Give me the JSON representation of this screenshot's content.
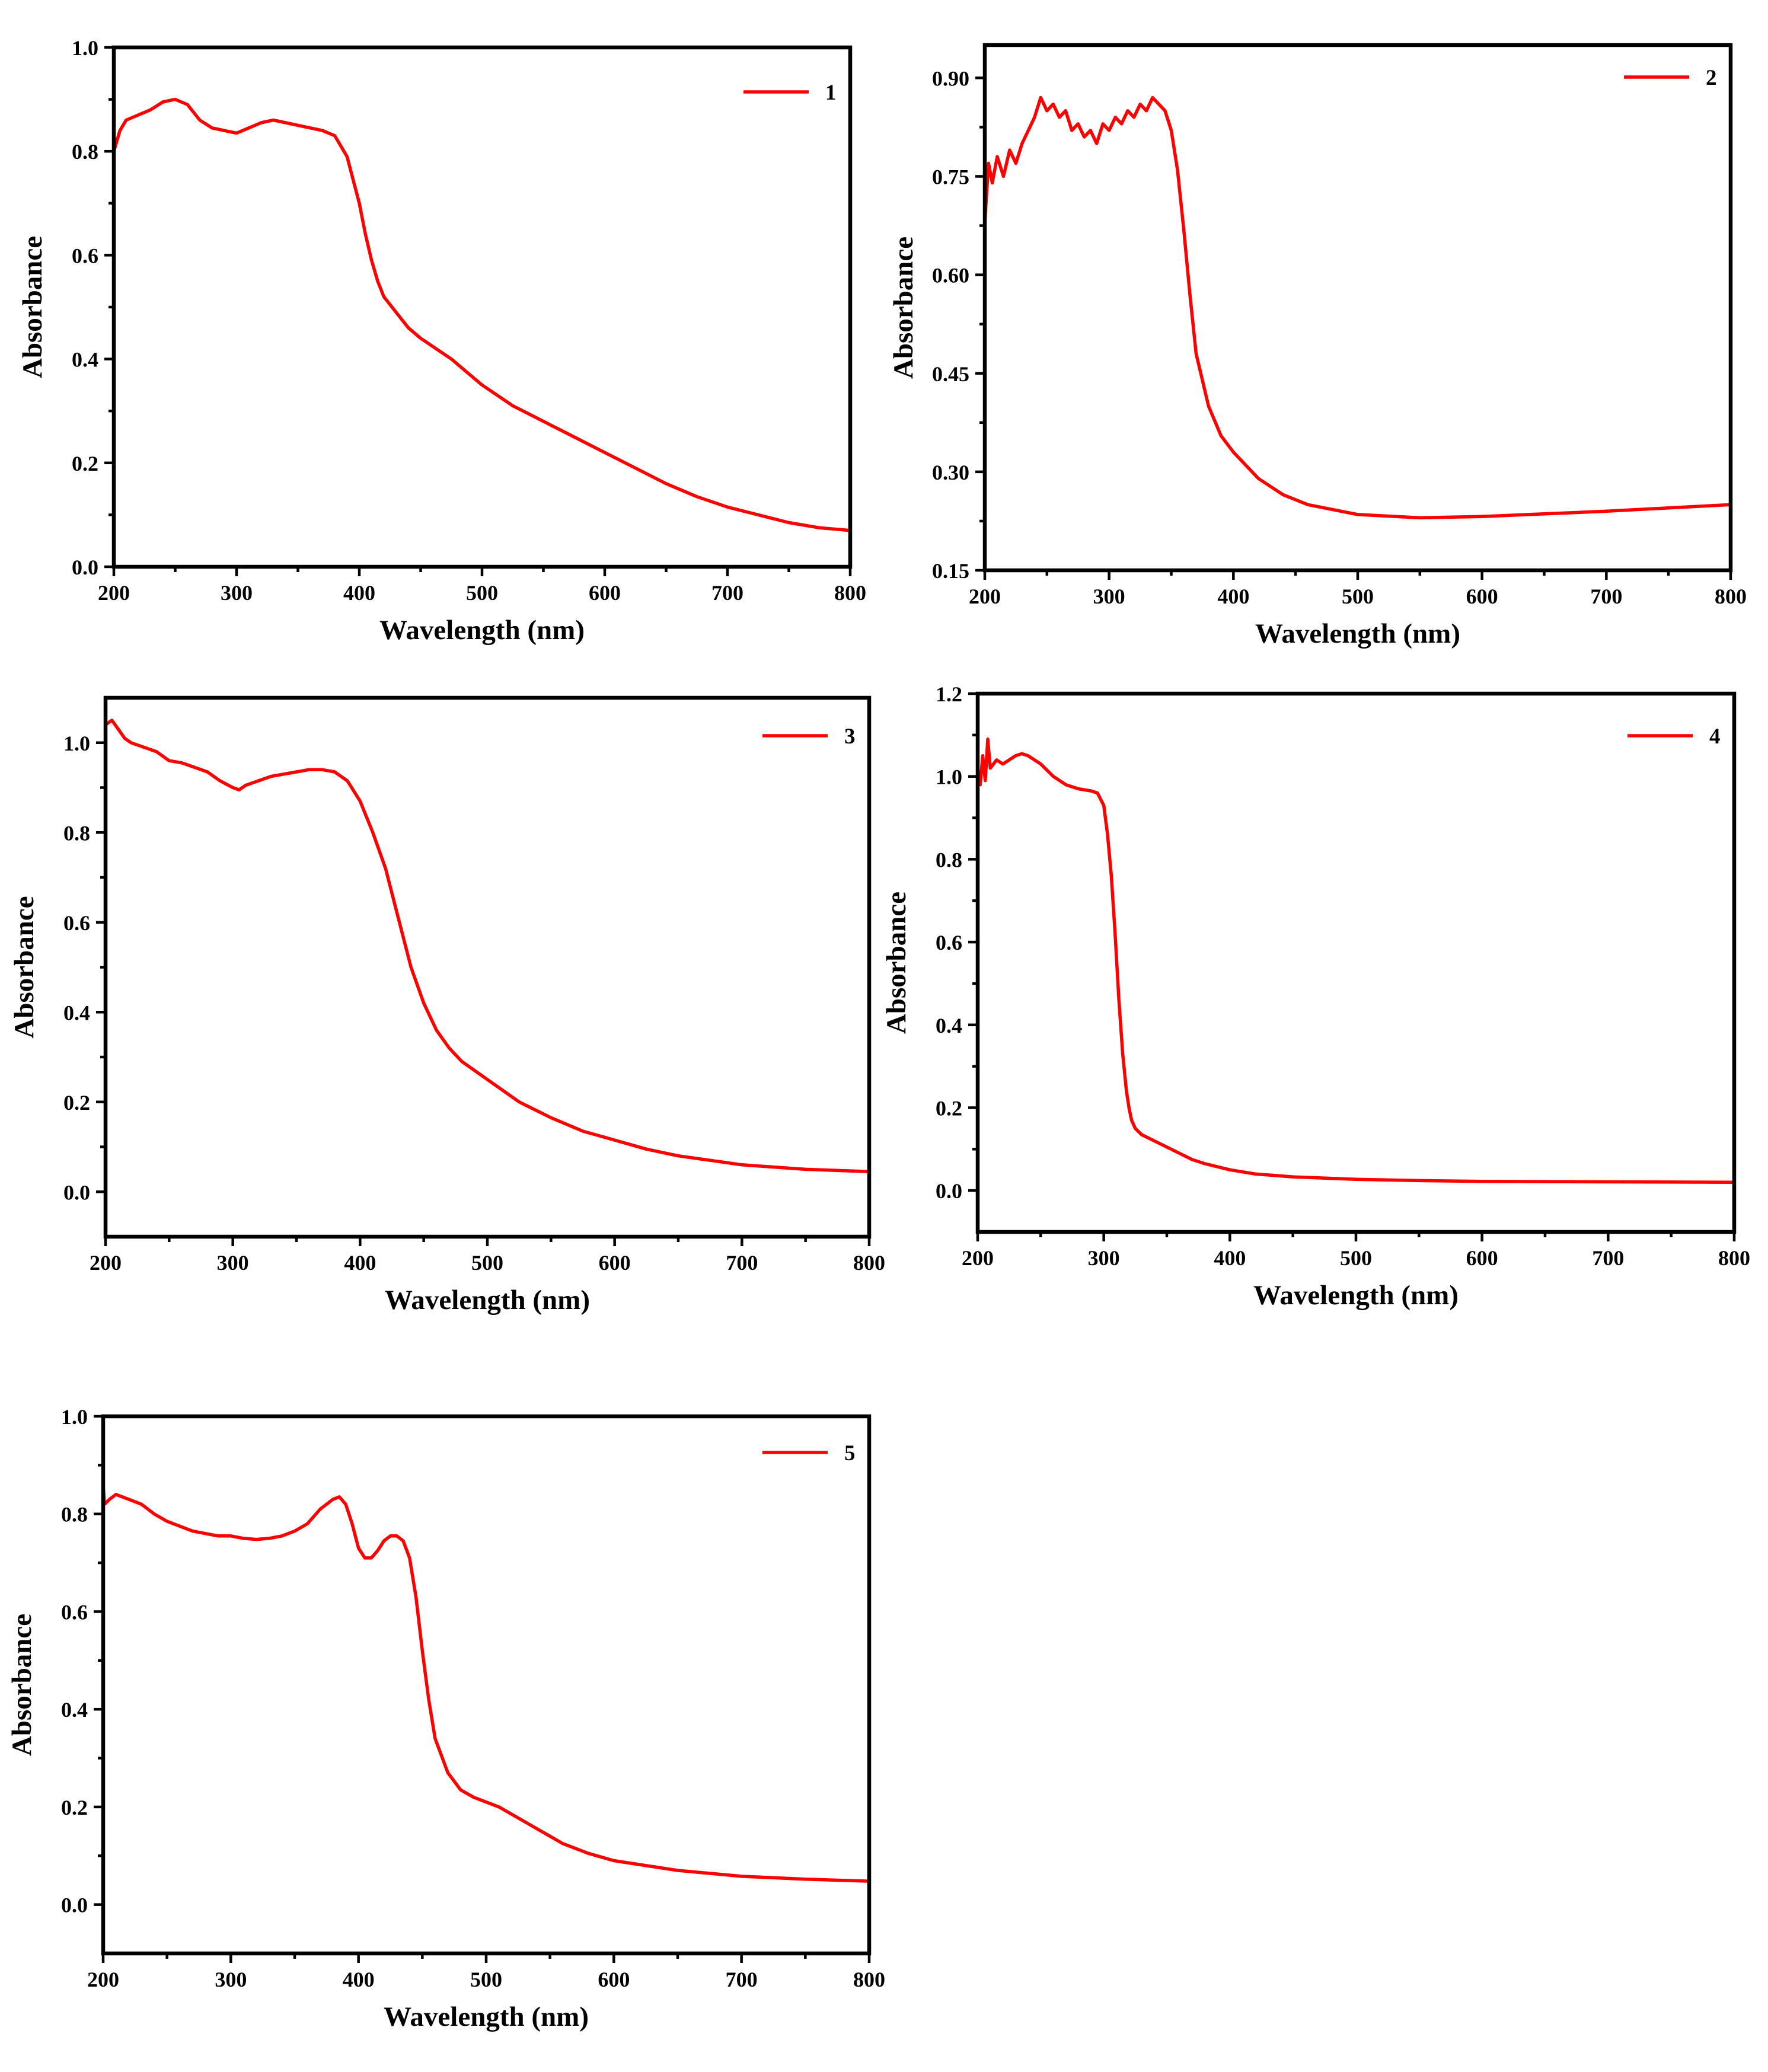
{
  "chart_data": [
    {
      "type": "line",
      "xlabel": "Wavelength (nm)",
      "ylabel": "Absorbance",
      "xlim": [
        200,
        800
      ],
      "ylim": [
        0.0,
        1.0
      ],
      "xticks": [
        200,
        300,
        400,
        500,
        600,
        700,
        800
      ],
      "xtick_labels": [
        "200",
        "300",
        "400",
        "500",
        "600",
        "700",
        "800"
      ],
      "yticks": [
        0.0,
        0.2,
        0.4,
        0.6,
        0.8,
        1.0
      ],
      "ytick_labels": [
        "0.0",
        "0.2",
        "0.4",
        "0.6",
        "0.8",
        "1.0"
      ],
      "legend_position": "top-right",
      "series": [
        {
          "name": "1",
          "color": "#ff0000",
          "x": [
            200,
            205,
            210,
            220,
            230,
            240,
            250,
            260,
            270,
            280,
            290,
            300,
            310,
            320,
            330,
            340,
            350,
            360,
            370,
            380,
            390,
            400,
            405,
            410,
            415,
            420,
            430,
            440,
            450,
            475,
            500,
            525,
            550,
            575,
            600,
            625,
            650,
            675,
            700,
            725,
            750,
            775,
            800
          ],
          "y": [
            0.8,
            0.84,
            0.86,
            0.87,
            0.88,
            0.895,
            0.9,
            0.89,
            0.86,
            0.845,
            0.84,
            0.835,
            0.845,
            0.855,
            0.86,
            0.855,
            0.85,
            0.845,
            0.84,
            0.83,
            0.79,
            0.7,
            0.64,
            0.59,
            0.55,
            0.52,
            0.49,
            0.46,
            0.44,
            0.4,
            0.35,
            0.31,
            0.28,
            0.25,
            0.22,
            0.19,
            0.16,
            0.135,
            0.115,
            0.1,
            0.085,
            0.075,
            0.07
          ]
        }
      ]
    },
    {
      "type": "line",
      "xlabel": "Wavelength (nm)",
      "ylabel": "Absorbance",
      "xlim": [
        200,
        800
      ],
      "ylim": [
        0.15,
        0.95
      ],
      "xticks": [
        200,
        300,
        400,
        500,
        600,
        700,
        800
      ],
      "xtick_labels": [
        "200",
        "300",
        "400",
        "500",
        "600",
        "700",
        "800"
      ],
      "yticks": [
        0.15,
        0.3,
        0.45,
        0.6,
        0.75,
        0.9
      ],
      "ytick_labels": [
        "0.15",
        "0.30",
        "0.45",
        "0.60",
        "0.75",
        "0.90"
      ],
      "legend_position": "top-right",
      "series": [
        {
          "name": "2",
          "color": "#ff0000",
          "x": [
            200,
            203,
            206,
            210,
            215,
            220,
            225,
            230,
            235,
            240,
            245,
            250,
            255,
            260,
            265,
            270,
            275,
            280,
            285,
            290,
            295,
            300,
            305,
            310,
            315,
            320,
            325,
            330,
            335,
            340,
            345,
            350,
            355,
            360,
            365,
            370,
            380,
            390,
            400,
            420,
            440,
            460,
            500,
            550,
            600,
            650,
            700,
            750,
            800
          ],
          "y": [
            0.68,
            0.77,
            0.74,
            0.78,
            0.75,
            0.79,
            0.77,
            0.8,
            0.82,
            0.84,
            0.87,
            0.85,
            0.86,
            0.84,
            0.85,
            0.82,
            0.83,
            0.81,
            0.82,
            0.8,
            0.83,
            0.82,
            0.84,
            0.83,
            0.85,
            0.84,
            0.86,
            0.85,
            0.87,
            0.86,
            0.85,
            0.82,
            0.76,
            0.67,
            0.57,
            0.48,
            0.4,
            0.355,
            0.33,
            0.29,
            0.265,
            0.25,
            0.235,
            0.23,
            0.232,
            0.236,
            0.24,
            0.245,
            0.25
          ]
        }
      ]
    },
    {
      "type": "line",
      "xlabel": "Wavelength (nm)",
      "ylabel": "Absorbance",
      "xlim": [
        200,
        800
      ],
      "ylim": [
        -0.1,
        1.1
      ],
      "xticks": [
        200,
        300,
        400,
        500,
        600,
        700,
        800
      ],
      "xtick_labels": [
        "200",
        "300",
        "400",
        "500",
        "600",
        "700",
        "800"
      ],
      "yticks": [
        0.0,
        0.2,
        0.4,
        0.6,
        0.8,
        1.0
      ],
      "ytick_labels": [
        "0.0",
        "0.2",
        "0.4",
        "0.6",
        "0.8",
        "1.0"
      ],
      "legend_position": "top-right",
      "series": [
        {
          "name": "3",
          "color": "#ff0000",
          "x": [
            200,
            205,
            210,
            215,
            220,
            230,
            240,
            250,
            260,
            270,
            280,
            290,
            300,
            305,
            310,
            320,
            330,
            340,
            350,
            360,
            370,
            380,
            390,
            400,
            410,
            420,
            430,
            440,
            450,
            460,
            470,
            480,
            500,
            525,
            550,
            575,
            600,
            625,
            650,
            675,
            700,
            750,
            800
          ],
          "y": [
            1.04,
            1.05,
            1.03,
            1.01,
            1.0,
            0.99,
            0.98,
            0.96,
            0.955,
            0.945,
            0.935,
            0.915,
            0.9,
            0.895,
            0.905,
            0.915,
            0.925,
            0.93,
            0.935,
            0.94,
            0.94,
            0.935,
            0.915,
            0.87,
            0.8,
            0.72,
            0.61,
            0.5,
            0.42,
            0.36,
            0.32,
            0.29,
            0.25,
            0.2,
            0.165,
            0.135,
            0.115,
            0.095,
            0.08,
            0.07,
            0.06,
            0.05,
            0.045
          ]
        }
      ]
    },
    {
      "type": "line",
      "xlabel": "Wavelength (nm)",
      "ylabel": "Absorbance",
      "xlim": [
        200,
        800
      ],
      "ylim": [
        -0.1,
        1.2
      ],
      "xticks": [
        200,
        300,
        400,
        500,
        600,
        700,
        800
      ],
      "xtick_labels": [
        "200",
        "300",
        "400",
        "500",
        "600",
        "700",
        "800"
      ],
      "yticks": [
        0.0,
        0.2,
        0.4,
        0.6,
        0.8,
        1.0,
        1.2
      ],
      "ytick_labels": [
        "0.0",
        "0.2",
        "0.4",
        "0.6",
        "0.8",
        "1.0",
        "1.2"
      ],
      "legend_position": "top-right",
      "series": [
        {
          "name": "4",
          "color": "#ff0000",
          "x": [
            200,
            202,
            204,
            206,
            208,
            210,
            215,
            220,
            225,
            230,
            235,
            240,
            250,
            260,
            270,
            280,
            290,
            295,
            300,
            303,
            306,
            309,
            312,
            315,
            318,
            320,
            322,
            325,
            330,
            340,
            350,
            360,
            370,
            380,
            400,
            420,
            450,
            500,
            550,
            600,
            700,
            800
          ],
          "y": [
            1.02,
            0.98,
            1.05,
            0.99,
            1.09,
            1.02,
            1.04,
            1.03,
            1.04,
            1.05,
            1.055,
            1.05,
            1.03,
            1.0,
            0.98,
            0.97,
            0.965,
            0.96,
            0.93,
            0.86,
            0.76,
            0.62,
            0.46,
            0.33,
            0.24,
            0.2,
            0.17,
            0.15,
            0.135,
            0.12,
            0.105,
            0.09,
            0.075,
            0.065,
            0.05,
            0.04,
            0.033,
            0.027,
            0.024,
            0.022,
            0.021,
            0.02
          ]
        }
      ]
    },
    {
      "type": "line",
      "xlabel": "Wavelength (nm)",
      "ylabel": "Absorbance",
      "xlim": [
        200,
        800
      ],
      "ylim": [
        -0.1,
        1.0
      ],
      "xticks": [
        200,
        300,
        400,
        500,
        600,
        700,
        800
      ],
      "xtick_labels": [
        "200",
        "300",
        "400",
        "500",
        "600",
        "700",
        "800"
      ],
      "yticks": [
        0.0,
        0.2,
        0.4,
        0.6,
        0.8,
        1.0
      ],
      "ytick_labels": [
        "0.0",
        "0.2",
        "0.4",
        "0.6",
        "0.8",
        "1.0"
      ],
      "legend_position": "top-right",
      "series": [
        {
          "name": "5",
          "color": "#ff0000",
          "x": [
            200,
            201,
            205,
            210,
            220,
            230,
            240,
            250,
            260,
            270,
            280,
            290,
            300,
            310,
            320,
            330,
            340,
            350,
            360,
            370,
            380,
            385,
            390,
            395,
            400,
            405,
            410,
            415,
            420,
            425,
            430,
            435,
            440,
            445,
            450,
            455,
            460,
            470,
            480,
            490,
            500,
            510,
            520,
            530,
            540,
            550,
            560,
            580,
            600,
            650,
            700,
            750,
            800
          ],
          "y": [
            0.86,
            0.82,
            0.83,
            0.84,
            0.83,
            0.82,
            0.8,
            0.785,
            0.775,
            0.765,
            0.76,
            0.755,
            0.755,
            0.75,
            0.748,
            0.75,
            0.755,
            0.765,
            0.78,
            0.81,
            0.83,
            0.835,
            0.82,
            0.78,
            0.73,
            0.71,
            0.71,
            0.725,
            0.745,
            0.755,
            0.755,
            0.745,
            0.71,
            0.63,
            0.52,
            0.42,
            0.34,
            0.27,
            0.235,
            0.22,
            0.21,
            0.2,
            0.185,
            0.17,
            0.155,
            0.14,
            0.125,
            0.105,
            0.09,
            0.07,
            0.058,
            0.052,
            0.048
          ]
        }
      ]
    }
  ]
}
